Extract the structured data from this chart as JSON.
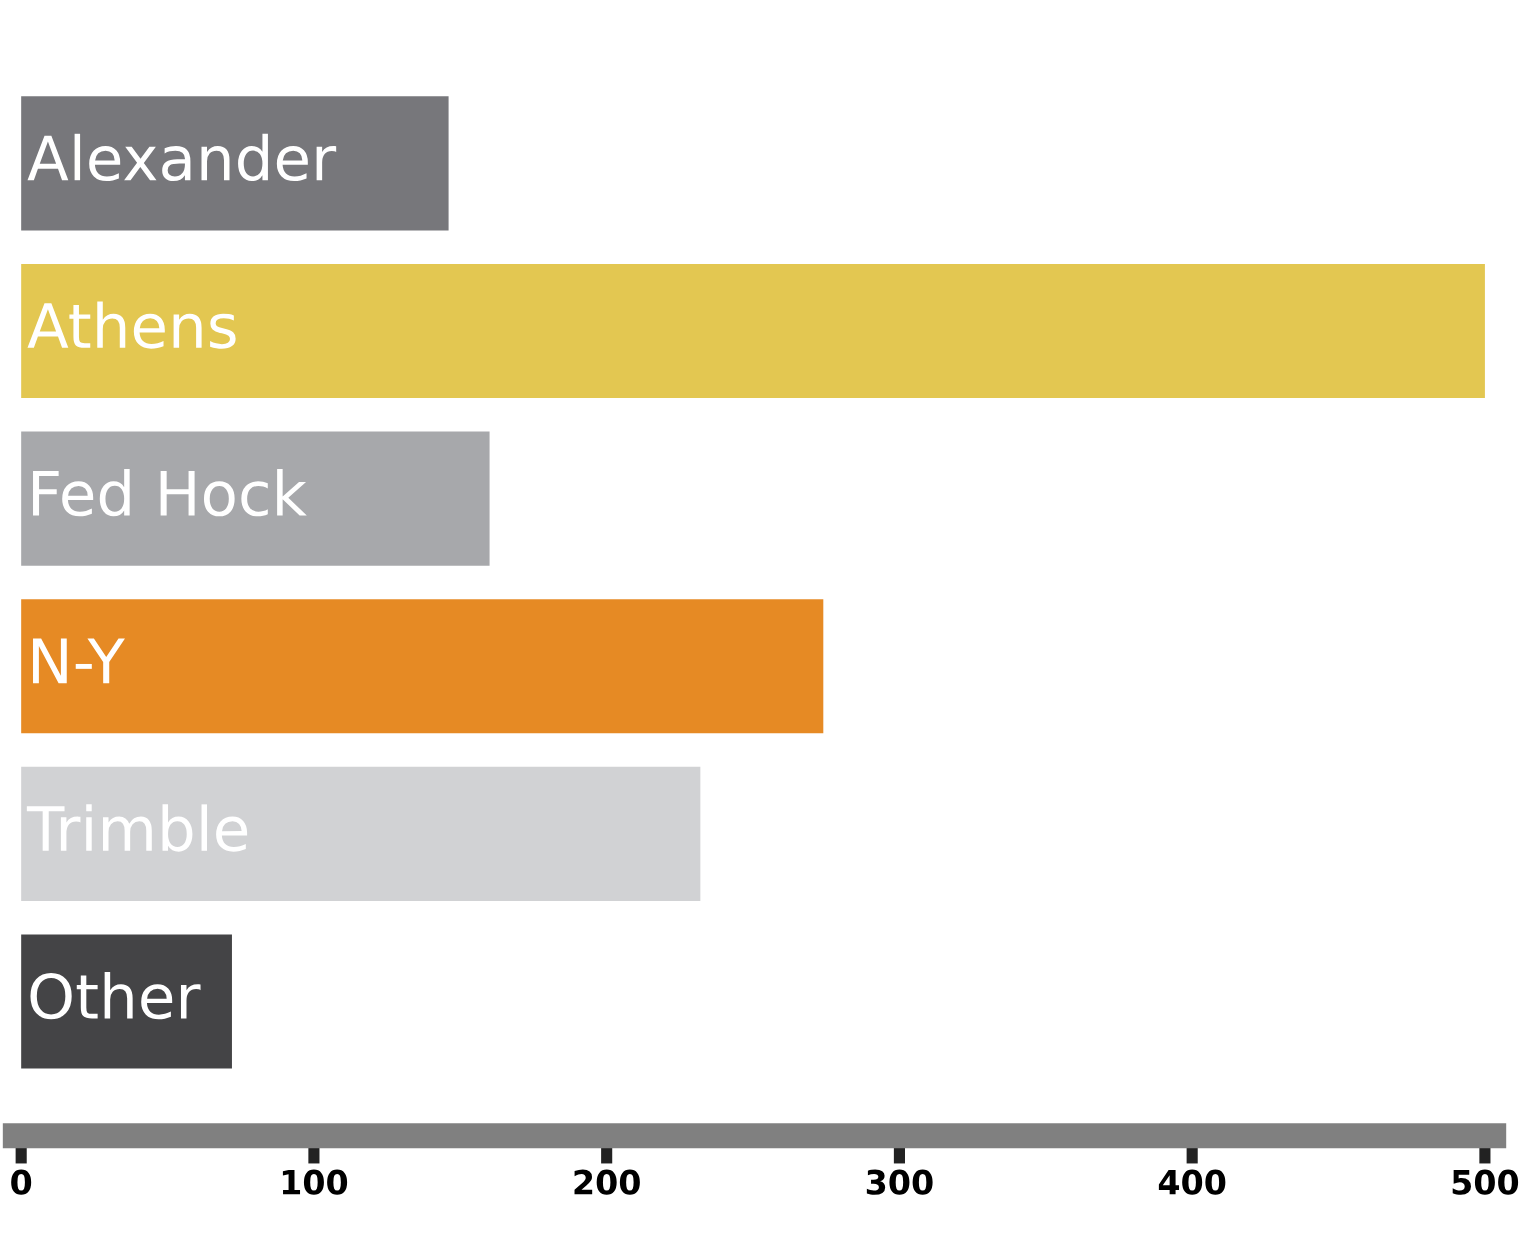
{
  "chart_data": {
    "type": "bar",
    "orientation": "horizontal",
    "categories": [
      "Alexander",
      "Athens",
      "Fed Hock",
      "N-Y",
      "Trimble",
      "Other"
    ],
    "values": [
      146,
      500,
      160,
      274,
      232,
      72
    ],
    "colors": [
      "#77777b",
      "#e3c751",
      "#a7a8ab",
      "#e68a24",
      "#d1d2d4",
      "#444446"
    ],
    "xlim": [
      -2,
      503
    ],
    "xticks": [
      0,
      100,
      200,
      300,
      400,
      500
    ],
    "grid": false
  }
}
